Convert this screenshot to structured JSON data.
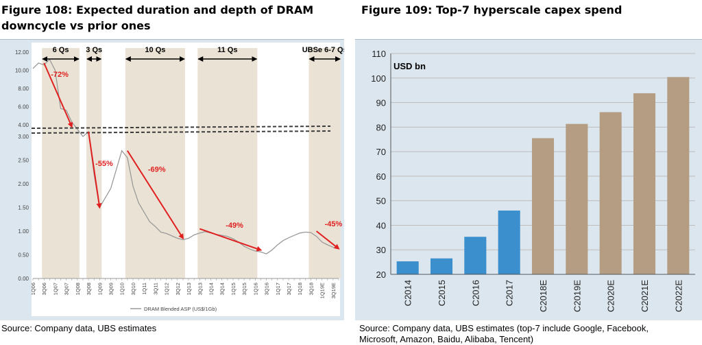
{
  "figures": {
    "left_title": "Figure 108: Expected duration and depth of DRAM downcycle vs prior ones",
    "right_title": "Figure 109: Top-7 hyperscale capex spend",
    "left_source": "Source:  Company data, UBS estimates",
    "right_source": "Source:  Company data, UBS estimates (top-7 include Google, Facebook, Microsoft, Amazon, Baidu, Alibaba, Tencent)"
  },
  "colors": {
    "panel_bg": "#dbe6ee",
    "shade": "#eae3d5",
    "dram_line": "#9a9a9a",
    "arrow": "#e02020",
    "bar_actual": "#3a8fcc",
    "bar_estimate": "#b49d83",
    "grid": "#bdbdbd"
  },
  "chart_data": [
    {
      "type": "line",
      "legend": "DRAM Blended ASP (US$/1Gb)",
      "x": [
        "1Q06",
        "2Q06",
        "3Q06",
        "4Q06",
        "1Q07",
        "2Q07",
        "3Q07",
        "4Q07",
        "1Q08",
        "2Q08",
        "3Q08",
        "4Q08",
        "1Q09",
        "2Q09",
        "3Q09",
        "4Q09",
        "1Q10",
        "2Q10",
        "3Q10",
        "4Q10",
        "1Q11",
        "2Q11",
        "3Q11",
        "4Q11",
        "1Q12",
        "2Q12",
        "3Q12",
        "4Q12",
        "1Q13",
        "2Q13",
        "3Q13",
        "4Q13",
        "1Q14",
        "2Q14",
        "3Q14",
        "4Q14",
        "1Q15",
        "2Q15",
        "3Q15",
        "4Q15",
        "1Q16",
        "2Q16",
        "3Q16",
        "4Q16",
        "1Q17",
        "2Q17",
        "3Q17",
        "4Q17",
        "1Q18",
        "2Q18",
        "3Q18",
        "4Q18",
        "1Q19E",
        "2Q19E",
        "3Q19E",
        "4Q19E"
      ],
      "x_tick_labels": [
        "1Q06",
        "3Q06",
        "1Q07",
        "3Q07",
        "1Q08",
        "3Q08",
        "1Q09",
        "3Q09",
        "1Q10",
        "3Q10",
        "1Q11",
        "3Q11",
        "1Q12",
        "3Q12",
        "1Q13",
        "3Q13",
        "1Q14",
        "3Q14",
        "1Q15",
        "3Q15",
        "1Q16",
        "3Q16",
        "1Q17",
        "3Q17",
        "1Q18",
        "3Q18",
        "1Q19E",
        "3Q19E"
      ],
      "upper_axis": {
        "ticks": [
          "4.00",
          "6.00",
          "8.00",
          "10.00",
          "12.00"
        ],
        "range": [
          4,
          12
        ]
      },
      "lower_axis": {
        "ticks": [
          "0.00",
          "0.50",
          "1.00",
          "1.50",
          "2.00",
          "2.50",
          "3.00"
        ],
        "range": [
          0,
          3
        ]
      },
      "values": [
        10.2,
        10.8,
        10.6,
        11.2,
        10.0,
        5.8,
        5.6,
        4.3,
        3.5,
        3.0,
        3.1,
        2.2,
        1.5,
        1.7,
        1.9,
        2.3,
        2.7,
        2.55,
        1.95,
        1.6,
        1.4,
        1.2,
        1.1,
        0.98,
        0.95,
        0.9,
        0.85,
        0.82,
        0.85,
        0.92,
        0.96,
        0.99,
        0.96,
        0.93,
        0.91,
        0.89,
        0.84,
        0.77,
        0.68,
        0.62,
        0.58,
        0.56,
        0.52,
        0.6,
        0.71,
        0.8,
        0.86,
        0.91,
        0.96,
        0.98,
        0.97,
        0.89,
        0.77,
        0.71,
        0.66,
        0.63
      ],
      "shaded_periods": [
        {
          "label": "6 Qs",
          "start": "3Q06",
          "end": "1Q08"
        },
        {
          "label": "3 Qs",
          "start": "3Q08",
          "end": "1Q09"
        },
        {
          "label": "10 Qs",
          "start": "2Q10",
          "end": "4Q12"
        },
        {
          "label": "11 Qs",
          "start": "3Q13",
          "end": "1Q16"
        },
        {
          "label": "UBSe 6-7 Qs",
          "start": "3Q18",
          "end": "4Q19E"
        }
      ],
      "declines": [
        {
          "label": "-72%",
          "from": {
            "x": "3Q06",
            "y": 10.8
          },
          "to": {
            "x": "4Q07",
            "y": 3.8
          }
        },
        {
          "label": "-55%",
          "from": {
            "x": "3Q08",
            "y": 3.1
          },
          "to": {
            "x": "1Q09",
            "y": 1.5
          }
        },
        {
          "label": "-69%",
          "from": {
            "x": "2Q10",
            "y": 2.7
          },
          "to": {
            "x": "4Q12",
            "y": 0.85
          }
        },
        {
          "label": "-49%",
          "from": {
            "x": "3Q13",
            "y": 1.05
          },
          "to": {
            "x": "2Q16",
            "y": 0.6
          }
        },
        {
          "label": "-45%",
          "from": {
            "x": "4Q18",
            "y": 1.0
          },
          "to": {
            "x": "4Q19E",
            "y": 0.63
          }
        }
      ]
    },
    {
      "type": "bar",
      "ylabel": "USD bn",
      "categories": [
        "C2014",
        "C2015",
        "C2016",
        "C2017",
        "C2018E",
        "C2019E",
        "C2020E",
        "C2021E",
        "C2022E"
      ],
      "values": [
        25.3,
        26.5,
        35.3,
        46.0,
        75.5,
        81.3,
        86.1,
        93.8,
        100.4
      ],
      "estimate_from_index": 4,
      "ylim": [
        20,
        110
      ],
      "yticks": [
        20,
        30,
        40,
        50,
        60,
        70,
        80,
        90,
        100,
        110
      ],
      "grid": true
    }
  ]
}
